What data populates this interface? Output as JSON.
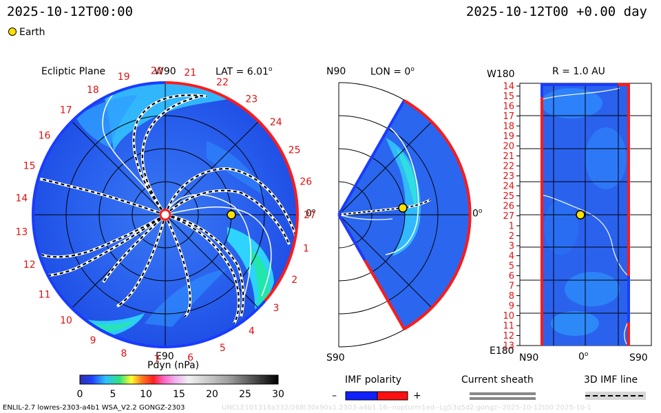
{
  "header": {
    "datetime_left": "2025-10-12T00:00",
    "datetime_right": "2025-10-12T00 +0.00 day",
    "legend_earth": "Earth"
  },
  "panel_ecliptic": {
    "title": "Ecliptic Plane",
    "top_label": "W90",
    "lat_label": "LAT = 6.01",
    "right_label": "0",
    "bottom_label": "E90",
    "carrington_numbers": [
      "1",
      "2",
      "3",
      "4",
      "5",
      "6",
      "7",
      "8",
      "9",
      "10",
      "11",
      "12",
      "13",
      "14",
      "15",
      "16",
      "17",
      "18",
      "19",
      "20",
      "21",
      "22",
      "23",
      "24",
      "25",
      "26",
      "27"
    ]
  },
  "panel_meridional": {
    "top_label": "N90",
    "lon_label": "LON = 0",
    "right_label": "0",
    "bottom_label": "S90"
  },
  "panel_radial": {
    "top_left_label": "W180",
    "r_label": "R = 1.0 AU",
    "bottom_left_label": "E180",
    "x_labels": [
      "N90",
      "0",
      "S90"
    ],
    "y_labels": [
      "14",
      "15",
      "16",
      "17",
      "18",
      "19",
      "20",
      "21",
      "22",
      "23",
      "24",
      "25",
      "26",
      "27",
      "1",
      "2",
      "3",
      "4",
      "5",
      "6",
      "7",
      "8",
      "9",
      "10",
      "11",
      "12",
      "13"
    ]
  },
  "colorbar": {
    "title": "Pdyn (nPa)",
    "ticks": [
      "0",
      "5",
      "10",
      "15",
      "20",
      "25",
      "30"
    ],
    "range": [
      0,
      30
    ]
  },
  "legend": {
    "imf_polarity": "IMF polarity",
    "minus": "–",
    "plus": "+",
    "current_sheath": "Current sheath",
    "imf_line": "3D IMF line"
  },
  "footer": {
    "model_info": "ENLIL-2.7 lowres-2303-a4b1 WSA_V2.2 GONGZ-2303",
    "run_id": "UNCLE101318a332/268t30x90x1.2303-a4b1.16--nopturm1ed--Lg53q5d2.gongz--2025-10-12t00   2025-10-1"
  },
  "colors": {
    "background_blue": "#2a6cf0",
    "deep_blue": "#1a4fe8",
    "cyan": "#3fe6ff",
    "green": "#20e8a0",
    "polarity_negative": "#1020ff",
    "polarity_positive": "#ff1010",
    "earth": "#ffe000",
    "label_red": "#e01010"
  }
}
